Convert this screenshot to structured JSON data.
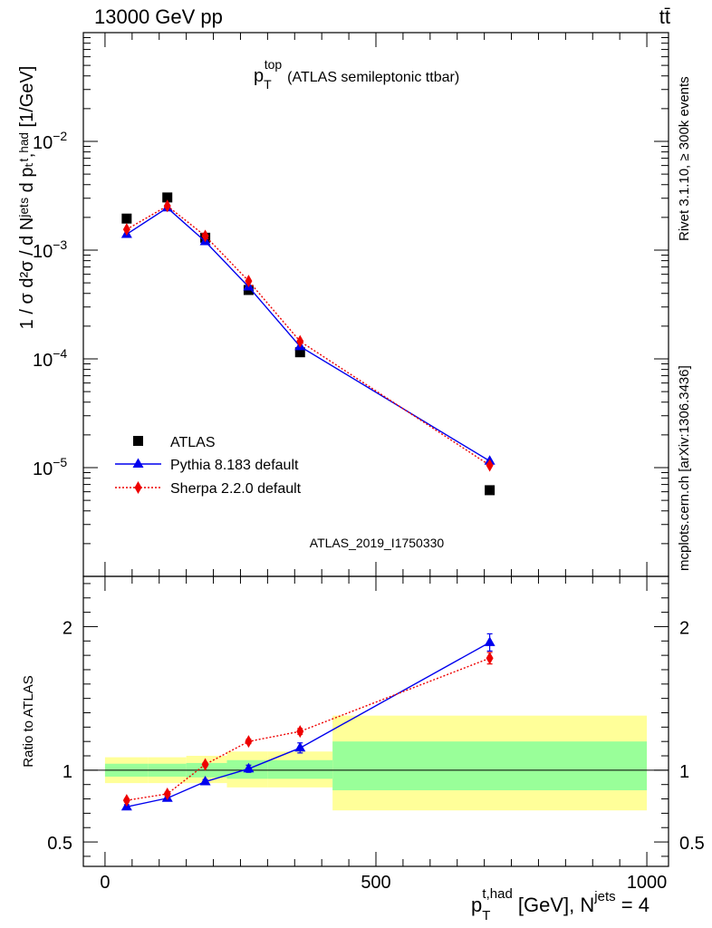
{
  "header": {
    "energy": "13000 GeV pp",
    "process": "tt̄"
  },
  "side": {
    "rivet": "Rivet 3.1.10, ≥ 300k events",
    "mcplots": "mcplots.cern.ch [arXiv:1306.3436]"
  },
  "analysis_id": "ATLAS_2019_I1750330",
  "colors": {
    "atlas": "#000000",
    "pythia": "#0000ee",
    "sherpa": "#ee0000",
    "band_inner": "#99ff99",
    "band_outer": "#ffff99"
  },
  "chart_data": [
    {
      "type": "scatter",
      "title_main": "p",
      "title_sup": "top",
      "title_sub": "T",
      "title_rest": "(ATLAS semileptonic ttbar)",
      "ylabel": "1 / σ d²σ / d Nʲᵉᵗˢ d pₜᵗ,ʰᵃᵈ [1/GeV]",
      "yscale": "log",
      "ylim": [
        1e-06,
        0.1
      ],
      "yticks": [
        {
          "value": 1e-05,
          "base": "10",
          "exp": "−5"
        },
        {
          "value": 0.0001,
          "base": "10",
          "exp": "−4"
        },
        {
          "value": 0.001,
          "base": "10",
          "exp": "−3"
        },
        {
          "value": 0.01,
          "base": "10",
          "exp": "−2"
        }
      ],
      "xlim": [
        -40,
        1040
      ],
      "legend_position": "bottom-left",
      "series": [
        {
          "name": "ATLAS",
          "marker": "square",
          "line": "none",
          "x": [
            40,
            115,
            185,
            265,
            360,
            710
          ],
          "y": [
            0.00195,
            0.00305,
            0.0013,
            0.00043,
            0.000115,
            6.2e-06
          ]
        },
        {
          "name": "Pythia 8.183 default",
          "marker": "triangle",
          "line": "solid",
          "x": [
            40,
            115,
            185,
            265,
            360,
            710
          ],
          "y": [
            0.0014,
            0.00245,
            0.0012,
            0.00046,
            0.00013,
            1.15e-05
          ]
        },
        {
          "name": "Sherpa 2.2.0 default",
          "marker": "diamond",
          "line": "dotted",
          "x": [
            40,
            115,
            185,
            265,
            360,
            710
          ],
          "y": [
            0.00155,
            0.00255,
            0.00135,
            0.00052,
            0.000145,
            1.05e-05
          ]
        }
      ]
    },
    {
      "type": "scatter",
      "ylabel": "Ratio to ATLAS",
      "yscale": "linear",
      "ylim": [
        0.33,
        2.35
      ],
      "yticks": [
        0.5,
        1,
        2
      ],
      "ytick_labels": [
        "0.5",
        "1",
        "2"
      ],
      "xlim": [
        -40,
        1040
      ],
      "xticks": [
        0,
        500,
        1000
      ],
      "xtick_labels": [
        "0",
        "500",
        "1000"
      ],
      "xlabel_main": "p",
      "xlabel_sup": "t,had",
      "xlabel_sub": "T",
      "xlabel_rest": " [GeV], N",
      "xlabel_sup2": "jets",
      "xlabel_end": " = 4",
      "bins": [
        {
          "x0": 0,
          "x1": 80,
          "inner": [
            0.955,
            1.045
          ],
          "outer": [
            0.91,
            1.09
          ]
        },
        {
          "x0": 80,
          "x1": 150,
          "inner": [
            0.955,
            1.045
          ],
          "outer": [
            0.91,
            1.09
          ]
        },
        {
          "x0": 150,
          "x1": 225,
          "inner": [
            0.95,
            1.05
          ],
          "outer": [
            0.91,
            1.1
          ]
        },
        {
          "x0": 225,
          "x1": 300,
          "inner": [
            0.94,
            1.07
          ],
          "outer": [
            0.88,
            1.13
          ]
        },
        {
          "x0": 300,
          "x1": 420,
          "inner": [
            0.94,
            1.07
          ],
          "outer": [
            0.88,
            1.13
          ]
        },
        {
          "x0": 420,
          "x1": 1000,
          "inner": [
            0.86,
            1.2
          ],
          "outer": [
            0.72,
            1.38
          ]
        }
      ],
      "reference_line": 1,
      "series": [
        {
          "name": "Pythia 8.183 default",
          "x": [
            40,
            115,
            185,
            265,
            360,
            710
          ],
          "y": [
            0.745,
            0.805,
            0.92,
            1.01,
            1.155,
            1.89
          ],
          "err": [
            0.015,
            0.015,
            0.015,
            0.025,
            0.035,
            0.06
          ]
        },
        {
          "name": "Sherpa 2.2.0 default",
          "x": [
            40,
            115,
            185,
            265,
            360,
            710
          ],
          "y": [
            0.79,
            0.835,
            1.04,
            1.2,
            1.27,
            1.78
          ],
          "err": [
            0.012,
            0.012,
            0.012,
            0.015,
            0.02,
            0.04
          ]
        }
      ]
    }
  ]
}
